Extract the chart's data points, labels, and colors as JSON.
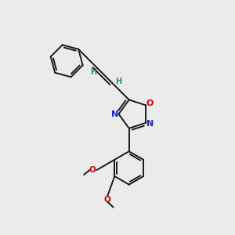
{
  "bg_color": "#ebebeb",
  "bond_color": "#1a1a1a",
  "N_color": "#2020cc",
  "O_color": "#cc0000",
  "H_color": "#3a8080",
  "bond_width": 1.4,
  "figsize": [
    3.0,
    3.0
  ],
  "dpi": 100,
  "xlim": [
    0,
    10
  ],
  "ylim": [
    0,
    10
  ]
}
